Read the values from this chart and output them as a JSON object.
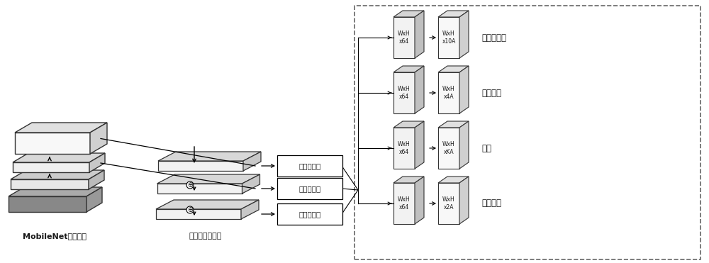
{
  "bg_color": "#ffffff",
  "label_mobilenet": "MobileNet骨干网络",
  "label_fpn": "特征金字塔网络",
  "head_labels": [
    "头部子网络",
    "头部子网络",
    "头部子网络"
  ],
  "output_labels": [
    "关键点回归",
    "边框回归",
    "分类",
    "视线回归"
  ],
  "layer_texts_64": [
    "WxH\nx64",
    "WxH\nx64",
    "WxH\nx64",
    "WxH\nx64"
  ],
  "layer_texts_out": [
    "WxH\nx10A",
    "WxH\nx4A",
    "WxH\nxKA",
    "WxH\nx2A"
  ],
  "text_color": "#1a1a1a",
  "dashed_box_color": "#666666",
  "plate_face": "#f2f2f2",
  "plate_top": "#d5d5d5",
  "plate_right": "#c0c0c0",
  "plate_edge": "#444444",
  "image_face": "#888888",
  "image_top": "#aaaaaa",
  "image_right": "#999999"
}
